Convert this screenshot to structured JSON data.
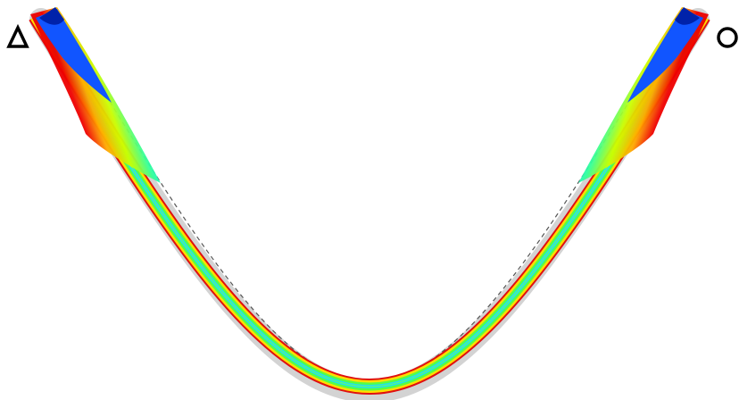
{
  "colors": {
    "background": "#ffffff",
    "undeformed_shadow": "#d3d3d3",
    "support_outline": "#000000",
    "contour_scale": [
      "#0033cc",
      "#0066ff",
      "#00aaff",
      "#00e0ff",
      "#33ff99",
      "#ccff00",
      "#ffcc00",
      "#ff5500",
      "#cc0000"
    ]
  },
  "supports": {
    "left": {
      "type": "pin",
      "icon": "triangle-support-icon"
    },
    "right": {
      "type": "roller",
      "icon": "circle-support-icon"
    }
  }
}
